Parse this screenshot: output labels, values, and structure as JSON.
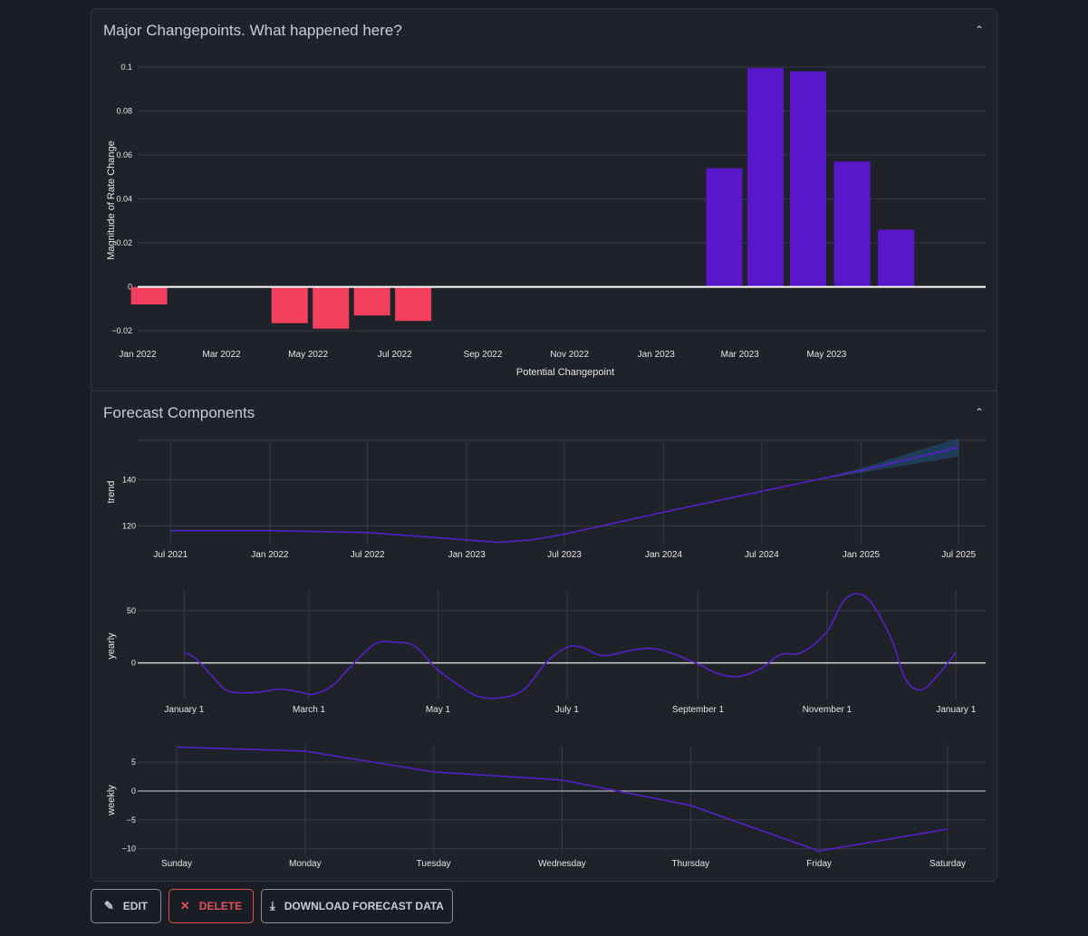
{
  "panels": {
    "changepoints": {
      "title": "Major Changepoints. What happened here?"
    },
    "components": {
      "title": "Forecast Components"
    }
  },
  "buttons": {
    "edit": "EDIT",
    "delete": "DELETE",
    "download": "DOWNLOAD FORECAST DATA"
  },
  "colors": {
    "positive": "#5a16c9",
    "negative": "#f2405e",
    "line": "#5a1fd1",
    "band": "#1f4f7a"
  },
  "chart_data": [
    {
      "type": "bar",
      "xlabel": "Potential Changepoint",
      "ylabel": "Magnitude of Rate Change",
      "ylim": [
        -0.022,
        0.1
      ],
      "yticks": [
        -0.02,
        0,
        0.02,
        0.04,
        0.06,
        0.08,
        0.1
      ],
      "ytick_labels": [
        "−0.02",
        "0",
        "0.02",
        "0.04",
        "0.06",
        "0.08",
        "0.1"
      ],
      "xaxis": {
        "start": "2022-01-01",
        "end": "2023-08-21"
      },
      "xticks": [
        "2022-01-01",
        "2022-03-01",
        "2022-05-01",
        "2022-07-01",
        "2022-09-01",
        "2022-11-01",
        "2023-01-01",
        "2023-03-01",
        "2023-05-01"
      ],
      "xtick_labels": [
        "Jan 2022",
        "Mar 2022",
        "May 2022",
        "Jul 2022",
        "Sep 2022",
        "Nov 2022",
        "Jan 2023",
        "Mar 2023",
        "May 2023"
      ],
      "bars": [
        {
          "x": "2022-01-09",
          "value": -0.008
        },
        {
          "x": "2022-04-18",
          "value": -0.0165
        },
        {
          "x": "2022-05-17",
          "value": -0.019
        },
        {
          "x": "2022-06-15",
          "value": -0.013
        },
        {
          "x": "2022-07-14",
          "value": -0.0155
        },
        {
          "x": "2023-02-18",
          "value": 0.054
        },
        {
          "x": "2023-03-19",
          "value": 0.0995
        },
        {
          "x": "2023-04-18",
          "value": 0.098
        },
        {
          "x": "2023-05-19",
          "value": 0.057
        },
        {
          "x": "2023-06-19",
          "value": 0.026
        }
      ]
    },
    {
      "type": "line",
      "ylabel": "trend",
      "ylim": [
        112,
        157
      ],
      "yticks": [
        120,
        140
      ],
      "ytick_labels": [
        "120",
        "140"
      ],
      "xaxis": {
        "start": "2021-05-01",
        "end": "2025-08-20"
      },
      "xticks": [
        "2021-07-01",
        "2022-01-01",
        "2022-07-01",
        "2023-01-01",
        "2023-07-01",
        "2024-01-01",
        "2024-07-01",
        "2025-01-01",
        "2025-07-01"
      ],
      "xtick_labels": [
        "Jul 2021",
        "Jan 2022",
        "Jul 2022",
        "Jan 2023",
        "Jul 2023",
        "Jan 2024",
        "Jul 2024",
        "Jan 2025",
        "Jul 2025"
      ],
      "points": [
        {
          "x": "2021-07-01",
          "y": 118.0
        },
        {
          "x": "2022-01-01",
          "y": 118.0
        },
        {
          "x": "2022-07-01",
          "y": 117.2
        },
        {
          "x": "2023-01-01",
          "y": 114.0
        },
        {
          "x": "2023-03-01",
          "y": 113.0
        },
        {
          "x": "2023-05-01",
          "y": 114.0
        },
        {
          "x": "2023-07-01",
          "y": 116.5
        },
        {
          "x": "2024-01-01",
          "y": 126.0
        },
        {
          "x": "2024-07-01",
          "y": 135.0
        },
        {
          "x": "2025-01-01",
          "y": 144.0
        },
        {
          "x": "2025-07-01",
          "y": 154.0
        }
      ],
      "band": [
        {
          "x": "2024-10-01",
          "lower": 139.5,
          "upper": 139.5
        },
        {
          "x": "2025-01-01",
          "lower": 143.0,
          "upper": 145.0
        },
        {
          "x": "2025-07-01",
          "lower": 150.0,
          "upper": 158.0
        }
      ]
    },
    {
      "type": "line",
      "ylabel": "yearly",
      "ylim": [
        -35,
        70
      ],
      "yticks": [
        0,
        50
      ],
      "ytick_labels": [
        "0",
        "50"
      ],
      "zeroline": true,
      "xaxis": {
        "start": "2021-12-10",
        "end": "2023-01-15"
      },
      "xticks": [
        "2022-01-01",
        "2022-03-01",
        "2022-05-01",
        "2022-07-01",
        "2022-09-01",
        "2022-11-01",
        "2023-01-01"
      ],
      "xtick_labels": [
        "January 1",
        "March 1",
        "May 1",
        "July 1",
        "September 1",
        "November 1",
        "January 1"
      ],
      "points": [
        {
          "x": "2022-01-01",
          "y": 10
        },
        {
          "x": "2022-01-06",
          "y": 5
        },
        {
          "x": "2022-01-14",
          "y": -12
        },
        {
          "x": "2022-01-22",
          "y": -27
        },
        {
          "x": "2022-02-05",
          "y": -28
        },
        {
          "x": "2022-02-15",
          "y": -25
        },
        {
          "x": "2022-02-25",
          "y": -28
        },
        {
          "x": "2022-03-03",
          "y": -30
        },
        {
          "x": "2022-03-12",
          "y": -22
        },
        {
          "x": "2022-03-20",
          "y": -5
        },
        {
          "x": "2022-04-01",
          "y": 18
        },
        {
          "x": "2022-04-10",
          "y": 20
        },
        {
          "x": "2022-04-20",
          "y": 16
        },
        {
          "x": "2022-04-30",
          "y": -5
        },
        {
          "x": "2022-05-10",
          "y": -20
        },
        {
          "x": "2022-05-20",
          "y": -32
        },
        {
          "x": "2022-06-01",
          "y": -33
        },
        {
          "x": "2022-06-11",
          "y": -25
        },
        {
          "x": "2022-06-21",
          "y": 0
        },
        {
          "x": "2022-07-01",
          "y": 15
        },
        {
          "x": "2022-07-08",
          "y": 15
        },
        {
          "x": "2022-07-18",
          "y": 7
        },
        {
          "x": "2022-07-31",
          "y": 12
        },
        {
          "x": "2022-08-10",
          "y": 14
        },
        {
          "x": "2022-08-20",
          "y": 9
        },
        {
          "x": "2022-09-01",
          "y": -1
        },
        {
          "x": "2022-09-10",
          "y": -10
        },
        {
          "x": "2022-09-20",
          "y": -13
        },
        {
          "x": "2022-10-01",
          "y": -5
        },
        {
          "x": "2022-10-10",
          "y": 8
        },
        {
          "x": "2022-10-20",
          "y": 10
        },
        {
          "x": "2022-11-01",
          "y": 30
        },
        {
          "x": "2022-11-10",
          "y": 62
        },
        {
          "x": "2022-11-20",
          "y": 62
        },
        {
          "x": "2022-12-01",
          "y": 25
        },
        {
          "x": "2022-12-08",
          "y": -15
        },
        {
          "x": "2022-12-15",
          "y": -26
        },
        {
          "x": "2022-12-22",
          "y": -15
        },
        {
          "x": "2023-01-01",
          "y": 10
        }
      ]
    },
    {
      "type": "line",
      "ylabel": "weekly",
      "ylim": [
        -11,
        8
      ],
      "yticks": [
        -10,
        -5,
        0,
        5
      ],
      "ytick_labels": [
        "−10",
        "−5",
        "0",
        "5"
      ],
      "zeroline": true,
      "categories": [
        "Sunday",
        "Monday",
        "Tuesday",
        "Wednesday",
        "Thursday",
        "Friday",
        "Saturday"
      ],
      "values": [
        7.6,
        6.9,
        3.3,
        1.9,
        -2.5,
        -10.4,
        -6.6
      ]
    }
  ]
}
